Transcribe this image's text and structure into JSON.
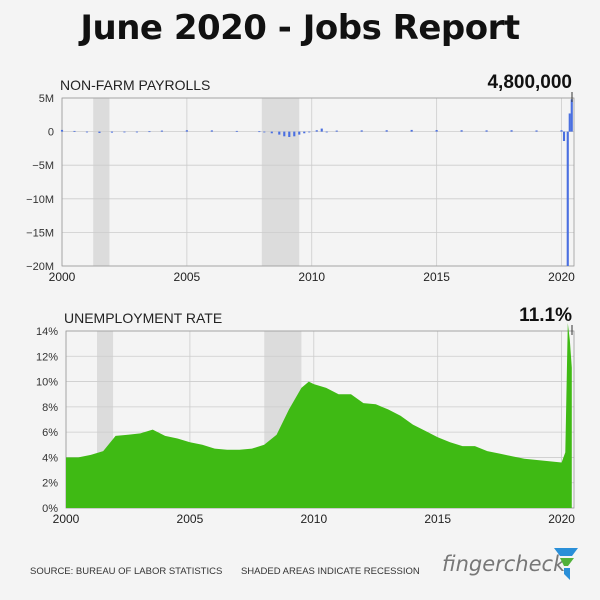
{
  "title": "June 2020 - Jobs Report",
  "recession_periods": [
    [
      2001.25,
      2001.9
    ],
    [
      2008.0,
      2009.5
    ]
  ],
  "colors": {
    "payrolls": "#4a6fe0",
    "unemployment": "#3fba14",
    "recession": "#dcdcdc",
    "grid": "#cccccc"
  },
  "chart_data": [
    {
      "type": "bar",
      "title": "NON-FARM PAYROLLS",
      "callout": "4,800,000",
      "ylim": [
        -20000000,
        5000000
      ],
      "yticks": [
        5000000,
        0,
        -5000000,
        -10000000,
        -15000000,
        -20000000
      ],
      "ytick_labels": [
        "5M",
        "0",
        "−5M",
        "−10M",
        "−15M",
        "−20M"
      ],
      "xlim": [
        2000,
        2020.5
      ],
      "xticks": [
        2000,
        2005,
        2010,
        2015,
        2020
      ],
      "xtick_labels": [
        "2000",
        "2005",
        "2010",
        "2015",
        "2020"
      ],
      "series": [
        {
          "points": [
            [
              2000.0,
              250000
            ],
            [
              2000.5,
              100000
            ],
            [
              2001.0,
              -50000
            ],
            [
              2001.5,
              -200000
            ],
            [
              2002.0,
              -150000
            ],
            [
              2002.5,
              -50000
            ],
            [
              2003.0,
              -30000
            ],
            [
              2003.5,
              50000
            ],
            [
              2004.0,
              150000
            ],
            [
              2005.0,
              200000
            ],
            [
              2006.0,
              180000
            ],
            [
              2007.0,
              100000
            ],
            [
              2007.9,
              50000
            ],
            [
              2008.1,
              -100000
            ],
            [
              2008.4,
              -250000
            ],
            [
              2008.7,
              -450000
            ],
            [
              2008.9,
              -700000
            ],
            [
              2009.1,
              -800000
            ],
            [
              2009.3,
              -700000
            ],
            [
              2009.5,
              -450000
            ],
            [
              2009.7,
              -250000
            ],
            [
              2009.9,
              -100000
            ],
            [
              2010.2,
              200000
            ],
            [
              2010.4,
              450000
            ],
            [
              2010.6,
              0
            ],
            [
              2011.0,
              150000
            ],
            [
              2012.0,
              180000
            ],
            [
              2013.0,
              200000
            ],
            [
              2014.0,
              250000
            ],
            [
              2015.0,
              230000
            ],
            [
              2016.0,
              200000
            ],
            [
              2017.0,
              180000
            ],
            [
              2018.0,
              200000
            ],
            [
              2019.0,
              170000
            ],
            [
              2020.0,
              200000
            ],
            [
              2020.1,
              -1400000
            ],
            [
              2020.25,
              -20500000
            ],
            [
              2020.33,
              2700000
            ],
            [
              2020.41,
              4800000
            ]
          ]
        }
      ]
    },
    {
      "type": "area",
      "title": "UNEMPLOYMENT RATE",
      "callout": "11.1%",
      "ylim": [
        0,
        14
      ],
      "yticks": [
        0,
        2,
        4,
        6,
        8,
        10,
        12,
        14
      ],
      "ytick_labels": [
        "0%",
        "2%",
        "4%",
        "6%",
        "8%",
        "10%",
        "12%",
        "14%"
      ],
      "xlim": [
        2000,
        2020.5
      ],
      "xticks": [
        2000,
        2005,
        2010,
        2015,
        2020
      ],
      "xtick_labels": [
        "2000",
        "2005",
        "2010",
        "2015",
        "2020"
      ],
      "series": [
        {
          "points": [
            [
              2000.0,
              4.0
            ],
            [
              2000.5,
              4.0
            ],
            [
              2001.0,
              4.2
            ],
            [
              2001.5,
              4.5
            ],
            [
              2002.0,
              5.7
            ],
            [
              2002.5,
              5.8
            ],
            [
              2003.0,
              5.9
            ],
            [
              2003.5,
              6.2
            ],
            [
              2004.0,
              5.7
            ],
            [
              2004.5,
              5.5
            ],
            [
              2005.0,
              5.2
            ],
            [
              2005.5,
              5.0
            ],
            [
              2006.0,
              4.7
            ],
            [
              2006.5,
              4.6
            ],
            [
              2007.0,
              4.6
            ],
            [
              2007.5,
              4.7
            ],
            [
              2008.0,
              5.0
            ],
            [
              2008.5,
              5.8
            ],
            [
              2009.0,
              7.8
            ],
            [
              2009.5,
              9.5
            ],
            [
              2009.8,
              10.0
            ],
            [
              2010.0,
              9.8
            ],
            [
              2010.5,
              9.5
            ],
            [
              2011.0,
              9.0
            ],
            [
              2011.5,
              9.0
            ],
            [
              2012.0,
              8.3
            ],
            [
              2012.5,
              8.2
            ],
            [
              2013.0,
              7.8
            ],
            [
              2013.5,
              7.3
            ],
            [
              2014.0,
              6.6
            ],
            [
              2014.5,
              6.1
            ],
            [
              2015.0,
              5.6
            ],
            [
              2015.5,
              5.2
            ],
            [
              2016.0,
              4.9
            ],
            [
              2016.5,
              4.9
            ],
            [
              2017.0,
              4.5
            ],
            [
              2017.5,
              4.3
            ],
            [
              2018.0,
              4.1
            ],
            [
              2018.5,
              3.9
            ],
            [
              2019.0,
              3.8
            ],
            [
              2019.5,
              3.7
            ],
            [
              2020.0,
              3.6
            ],
            [
              2020.15,
              4.4
            ],
            [
              2020.25,
              14.7
            ],
            [
              2020.33,
              13.3
            ],
            [
              2020.41,
              11.1
            ]
          ]
        }
      ]
    }
  ],
  "footer": {
    "source": "SOURCE: BUREAU OF LABOR STATISTICS",
    "note": "SHADED AREAS INDICATE RECESSION"
  },
  "brand": {
    "name": "fingercheck",
    "logo": "fingercheck-logo-icon"
  }
}
